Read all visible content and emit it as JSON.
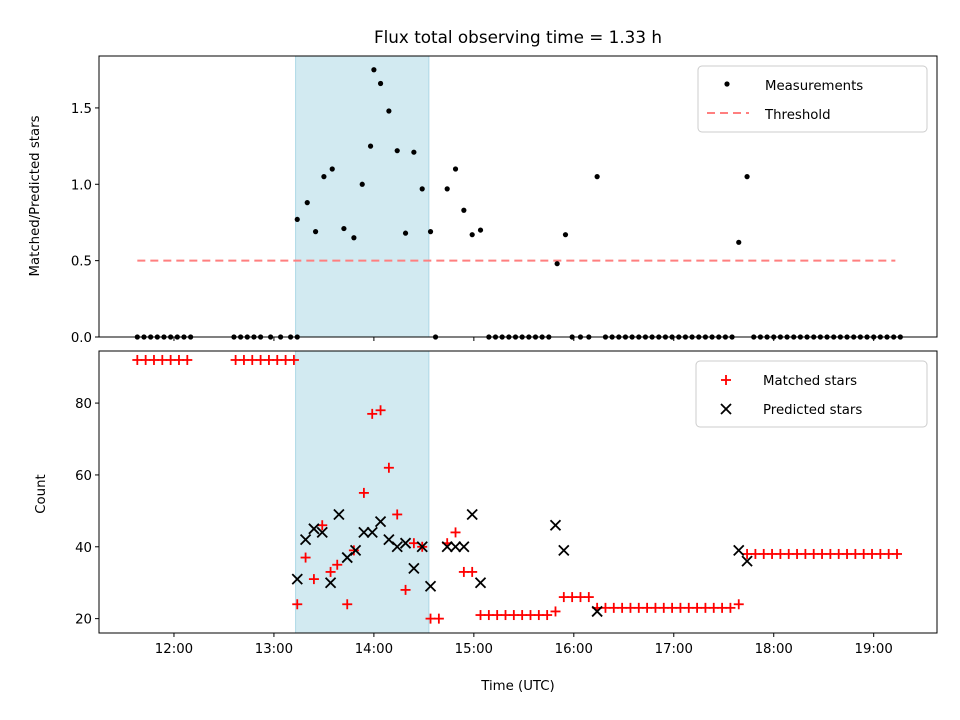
{
  "title": "Flux total observing time = 1.33 h",
  "colors": {
    "shade": "#add8e6",
    "measurement": "#000000",
    "threshold": "#ff7f7f",
    "matched": "#ff0000",
    "predicted": "#000000"
  },
  "chart_data": [
    {
      "type": "scatter",
      "ylabel": "Matched/Predicted stars",
      "xlim": [
        "11:15",
        "19:38"
      ],
      "ylim": [
        0,
        1.84
      ],
      "yticks": [
        "0.0",
        "0.5",
        "1.0",
        "1.5"
      ],
      "shaded_span": [
        "13:13",
        "14:33"
      ],
      "legend": {
        "placement": "top-right",
        "entries": [
          "Measurements",
          "Threshold"
        ]
      },
      "threshold": {
        "name": "Threshold",
        "value": 0.5,
        "x_range": [
          "11:38",
          "19:13"
        ]
      },
      "series": [
        {
          "name": "Measurements",
          "points": [
            [
              "11:38",
              0
            ],
            [
              "11:42",
              0
            ],
            [
              "11:46",
              0
            ],
            [
              "11:50",
              0
            ],
            [
              "11:54",
              0
            ],
            [
              "11:58",
              0
            ],
            [
              "12:02",
              0
            ],
            [
              "12:06",
              0
            ],
            [
              "12:10",
              0
            ],
            [
              "12:36",
              0
            ],
            [
              "12:40",
              0
            ],
            [
              "12:44",
              0
            ],
            [
              "12:48",
              0
            ],
            [
              "12:52",
              0
            ],
            [
              "12:58",
              0
            ],
            [
              "13:04",
              0
            ],
            [
              "13:10",
              0
            ],
            [
              "13:14",
              0
            ],
            [
              "13:14",
              0.77
            ],
            [
              "13:20",
              0.88
            ],
            [
              "13:25",
              0.69
            ],
            [
              "13:30",
              1.05
            ],
            [
              "13:35",
              1.1
            ],
            [
              "13:42",
              0.71
            ],
            [
              "13:48",
              0.65
            ],
            [
              "13:53",
              1.0
            ],
            [
              "13:58",
              1.25
            ],
            [
              "14:00",
              1.75
            ],
            [
              "14:04",
              1.66
            ],
            [
              "14:09",
              1.48
            ],
            [
              "14:14",
              1.22
            ],
            [
              "14:19",
              0.68
            ],
            [
              "14:24",
              1.21
            ],
            [
              "14:29",
              0.97
            ],
            [
              "14:34",
              0.69
            ],
            [
              "14:37",
              0
            ],
            [
              "14:44",
              0.97
            ],
            [
              "14:49",
              1.1
            ],
            [
              "14:54",
              0.83
            ],
            [
              "14:59",
              0.67
            ],
            [
              "15:04",
              0.7
            ],
            [
              "15:09",
              0
            ],
            [
              "15:13",
              0
            ],
            [
              "15:17",
              0
            ],
            [
              "15:21",
              0
            ],
            [
              "15:25",
              0
            ],
            [
              "15:29",
              0
            ],
            [
              "15:33",
              0
            ],
            [
              "15:37",
              0
            ],
            [
              "15:41",
              0
            ],
            [
              "15:45",
              0
            ],
            [
              "15:50",
              0.48
            ],
            [
              "15:55",
              0.67
            ],
            [
              "15:59",
              0
            ],
            [
              "16:04",
              0
            ],
            [
              "16:09",
              0
            ],
            [
              "16:14",
              1.05
            ],
            [
              "16:19",
              0
            ],
            [
              "16:23",
              0
            ],
            [
              "16:27",
              0
            ],
            [
              "16:31",
              0
            ],
            [
              "16:35",
              0
            ],
            [
              "16:39",
              0
            ],
            [
              "16:43",
              0
            ],
            [
              "16:47",
              0
            ],
            [
              "16:51",
              0
            ],
            [
              "16:55",
              0
            ],
            [
              "16:59",
              0
            ],
            [
              "17:03",
              0
            ],
            [
              "17:07",
              0
            ],
            [
              "17:11",
              0
            ],
            [
              "17:15",
              0
            ],
            [
              "17:19",
              0
            ],
            [
              "17:23",
              0
            ],
            [
              "17:27",
              0
            ],
            [
              "17:31",
              0
            ],
            [
              "17:35",
              0
            ],
            [
              "17:39",
              0.62
            ],
            [
              "17:44",
              1.05
            ],
            [
              "17:48",
              0
            ],
            [
              "17:52",
              0
            ],
            [
              "17:56",
              0
            ],
            [
              "18:00",
              0
            ],
            [
              "18:04",
              0
            ],
            [
              "18:08",
              0
            ],
            [
              "18:12",
              0
            ],
            [
              "18:16",
              0
            ],
            [
              "18:20",
              0
            ],
            [
              "18:24",
              0
            ],
            [
              "18:28",
              0
            ],
            [
              "18:32",
              0
            ],
            [
              "18:36",
              0
            ],
            [
              "18:40",
              0
            ],
            [
              "18:44",
              0
            ],
            [
              "18:48",
              0
            ],
            [
              "18:52",
              0
            ],
            [
              "18:56",
              0
            ],
            [
              "19:00",
              0
            ],
            [
              "19:04",
              0
            ],
            [
              "19:08",
              0
            ],
            [
              "19:12",
              0
            ],
            [
              "19:16",
              0
            ]
          ]
        }
      ]
    },
    {
      "type": "scatter",
      "xlabel": "Time (UTC)",
      "ylabel": "Count",
      "xlim": [
        "11:15",
        "19:38"
      ],
      "ylim": [
        16,
        94.5
      ],
      "yticks": [
        "20",
        "40",
        "60",
        "80"
      ],
      "xticks": [
        "12:00",
        "13:00",
        "14:00",
        "15:00",
        "16:00",
        "17:00",
        "18:00",
        "19:00"
      ],
      "shaded_span": [
        "13:13",
        "14:33"
      ],
      "legend": {
        "placement": "top-right",
        "entries": [
          "Matched stars",
          "Predicted stars"
        ]
      },
      "series": [
        {
          "name": "Matched stars",
          "points": [
            [
              "11:38",
              92
            ],
            [
              "11:43",
              92
            ],
            [
              "11:48",
              92
            ],
            [
              "11:53",
              92
            ],
            [
              "11:58",
              92
            ],
            [
              "12:03",
              92
            ],
            [
              "12:08",
              92
            ],
            [
              "12:37",
              92
            ],
            [
              "12:42",
              92
            ],
            [
              "12:47",
              92
            ],
            [
              "12:52",
              92
            ],
            [
              "12:57",
              92
            ],
            [
              "13:02",
              92
            ],
            [
              "13:07",
              92
            ],
            [
              "13:12",
              92
            ],
            [
              "13:14",
              24
            ],
            [
              "13:19",
              37
            ],
            [
              "13:24",
              31
            ],
            [
              "13:29",
              46
            ],
            [
              "13:34",
              33
            ],
            [
              "13:38",
              35
            ],
            [
              "13:44",
              24
            ],
            [
              "13:48",
              39
            ],
            [
              "13:54",
              55
            ],
            [
              "13:59",
              77
            ],
            [
              "14:04",
              78
            ],
            [
              "14:09",
              62
            ],
            [
              "14:14",
              49
            ],
            [
              "14:19",
              28
            ],
            [
              "14:24",
              41
            ],
            [
              "14:29",
              40
            ],
            [
              "14:34",
              20
            ],
            [
              "14:39",
              20
            ],
            [
              "14:44",
              41
            ],
            [
              "14:49",
              44
            ],
            [
              "14:54",
              33
            ],
            [
              "14:59",
              33
            ],
            [
              "15:04",
              21
            ],
            [
              "15:09",
              21
            ],
            [
              "15:14",
              21
            ],
            [
              "15:19",
              21
            ],
            [
              "15:24",
              21
            ],
            [
              "15:29",
              21
            ],
            [
              "15:34",
              21
            ],
            [
              "15:39",
              21
            ],
            [
              "15:44",
              21
            ],
            [
              "15:49",
              22
            ],
            [
              "15:54",
              26
            ],
            [
              "15:59",
              26
            ],
            [
              "16:04",
              26
            ],
            [
              "16:09",
              26
            ],
            [
              "16:14",
              23
            ],
            [
              "16:19",
              23
            ],
            [
              "16:24",
              23
            ],
            [
              "16:29",
              23
            ],
            [
              "16:34",
              23
            ],
            [
              "16:39",
              23
            ],
            [
              "16:44",
              23
            ],
            [
              "16:49",
              23
            ],
            [
              "16:54",
              23
            ],
            [
              "16:59",
              23
            ],
            [
              "17:04",
              23
            ],
            [
              "17:09",
              23
            ],
            [
              "17:14",
              23
            ],
            [
              "17:19",
              23
            ],
            [
              "17:24",
              23
            ],
            [
              "17:29",
              23
            ],
            [
              "17:34",
              23
            ],
            [
              "17:39",
              24
            ],
            [
              "17:44",
              38
            ],
            [
              "17:49",
              38
            ],
            [
              "17:54",
              38
            ],
            [
              "17:59",
              38
            ],
            [
              "18:04",
              38
            ],
            [
              "18:09",
              38
            ],
            [
              "18:14",
              38
            ],
            [
              "18:19",
              38
            ],
            [
              "18:24",
              38
            ],
            [
              "18:29",
              38
            ],
            [
              "18:34",
              38
            ],
            [
              "18:39",
              38
            ],
            [
              "18:44",
              38
            ],
            [
              "18:49",
              38
            ],
            [
              "18:54",
              38
            ],
            [
              "18:59",
              38
            ],
            [
              "19:04",
              38
            ],
            [
              "19:09",
              38
            ],
            [
              "19:14",
              38
            ]
          ]
        },
        {
          "name": "Predicted stars",
          "points": [
            [
              "13:14",
              31
            ],
            [
              "13:19",
              42
            ],
            [
              "13:24",
              45
            ],
            [
              "13:29",
              44
            ],
            [
              "13:34",
              30
            ],
            [
              "13:39",
              49
            ],
            [
              "13:44",
              37
            ],
            [
              "13:49",
              39
            ],
            [
              "13:54",
              44
            ],
            [
              "13:59",
              44
            ],
            [
              "14:04",
              47
            ],
            [
              "14:09",
              42
            ],
            [
              "14:14",
              40
            ],
            [
              "14:19",
              41
            ],
            [
              "14:24",
              34
            ],
            [
              "14:29",
              40
            ],
            [
              "14:34",
              29
            ],
            [
              "14:44",
              40
            ],
            [
              "14:49",
              40
            ],
            [
              "14:54",
              40
            ],
            [
              "14:59",
              49
            ],
            [
              "15:04",
              30
            ],
            [
              "15:49",
              46
            ],
            [
              "15:54",
              39
            ],
            [
              "16:14",
              22
            ],
            [
              "17:39",
              39
            ],
            [
              "17:44",
              36
            ]
          ]
        }
      ]
    }
  ]
}
